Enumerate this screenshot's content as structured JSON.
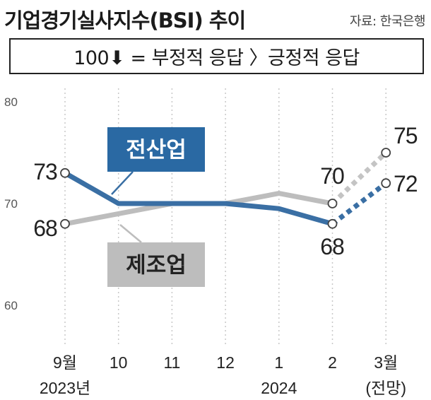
{
  "header": {
    "title": "기업경기실사지수(BSI) 추이",
    "source": "자료: 한국은행"
  },
  "note": "100⬇ = 부정적 응답 〉긍정적 응답",
  "colors": {
    "all_industry": "#3a6fa4",
    "manufacturing": "#bdbdbd",
    "all_industry_tag_bg": "#2a69a3",
    "manufacturing_tag_bg": "#bdbdbd",
    "grid": "#c8c8c8"
  },
  "chart_data": {
    "type": "line",
    "title": "기업경기실사지수(BSI) 추이",
    "categories": [
      "9월",
      "10",
      "11",
      "12",
      "1",
      "2",
      "3월"
    ],
    "category_sublabels": [
      "2023년",
      "",
      "",
      "",
      "2024",
      "",
      "(전망)"
    ],
    "ylim": [
      60,
      80
    ],
    "yticks": [
      60,
      70,
      80
    ],
    "grid": "vertical-dotted",
    "series": [
      {
        "name": "전산업",
        "values": [
          73,
          70,
          70,
          70,
          69.5,
          68,
          72
        ],
        "projected_from_index": 5,
        "labels": {
          "0": "73",
          "5": "68",
          "6": "72"
        }
      },
      {
        "name": "제조업",
        "values": [
          68,
          69,
          70,
          70,
          71,
          70,
          75
        ],
        "projected_from_index": 5,
        "labels": {
          "0": "68",
          "5": "70",
          "6": "75"
        }
      }
    ]
  }
}
